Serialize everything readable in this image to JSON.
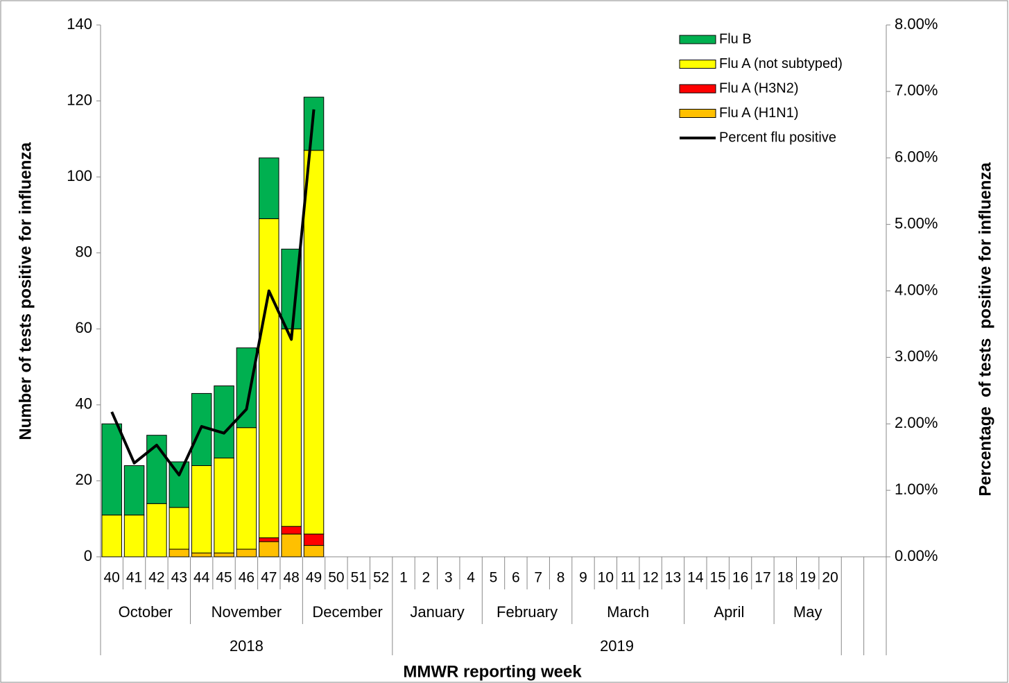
{
  "chart_data": {
    "type": "bar",
    "stacked": true,
    "y_title": "Number of tests positive for influenza",
    "y2_title": "Percentage  of tests  positive for influenza",
    "x_title": "MMWR reporting week",
    "categories": [
      "40",
      "41",
      "42",
      "43",
      "44",
      "45",
      "46",
      "47",
      "48",
      "49",
      "50",
      "51",
      "52",
      "1",
      "2",
      "3",
      "4",
      "5",
      "6",
      "7",
      "8",
      "9",
      "10",
      "11",
      "12",
      "13",
      "14",
      "15",
      "16",
      "17",
      "18",
      "19",
      "20",
      null,
      null
    ],
    "months": [
      "October",
      "October",
      "October",
      "October",
      "November",
      "November",
      "November",
      "November",
      "November",
      "December",
      "December",
      "December",
      "December",
      "January",
      "January",
      "January",
      "January",
      "February",
      "February",
      "February",
      "February",
      "March",
      "March",
      "March",
      "March",
      "March",
      "April",
      "April",
      "April",
      "April",
      "May",
      "May",
      "May",
      null,
      null
    ],
    "years": [
      "2018",
      "2018",
      "2018",
      "2018",
      "2018",
      "2018",
      "2018",
      "2018",
      "2018",
      "2018",
      "2018",
      "2018",
      "2018",
      "2019",
      "2019",
      "2019",
      "2019",
      "2019",
      "2019",
      "2019",
      "2019",
      "2019",
      "2019",
      "2019",
      "2019",
      "2019",
      "2019",
      "2019",
      "2019",
      "2019",
      "2019",
      "2019",
      "2019",
      null,
      null
    ],
    "series": [
      {
        "name": "Flu A (H1N1)",
        "color": "#ffc000",
        "values": [
          0,
          0,
          0,
          2,
          1,
          1,
          2,
          4,
          6,
          3,
          null,
          null,
          null,
          null,
          null,
          null,
          null,
          null,
          null,
          null,
          null,
          null,
          null,
          null,
          null,
          null,
          null,
          null,
          null,
          null,
          null,
          null,
          null,
          null,
          null
        ]
      },
      {
        "name": "Flu A (H3N2)",
        "color": "#ff0000",
        "values": [
          0,
          0,
          0,
          0,
          0,
          0,
          0,
          1,
          2,
          3,
          null,
          null,
          null,
          null,
          null,
          null,
          null,
          null,
          null,
          null,
          null,
          null,
          null,
          null,
          null,
          null,
          null,
          null,
          null,
          null,
          null,
          null,
          null,
          null,
          null
        ]
      },
      {
        "name": "Flu A (not subtyped)",
        "color": "#ffff00",
        "values": [
          11,
          11,
          14,
          11,
          23,
          25,
          32,
          84,
          52,
          101,
          null,
          null,
          null,
          null,
          null,
          null,
          null,
          null,
          null,
          null,
          null,
          null,
          null,
          null,
          null,
          null,
          null,
          null,
          null,
          null,
          null,
          null,
          null,
          null,
          null
        ]
      },
      {
        "name": "Flu B",
        "color": "#00b050",
        "values": [
          24,
          13,
          18,
          12,
          19,
          19,
          21,
          16,
          21,
          14,
          null,
          null,
          null,
          null,
          null,
          null,
          null,
          null,
          null,
          null,
          null,
          null,
          null,
          null,
          null,
          null,
          null,
          null,
          null,
          null,
          null,
          null,
          null,
          null,
          null
        ]
      },
      {
        "name": "Percent flu positive",
        "color": "#000000",
        "type": "line",
        "axis": "y2",
        "values": [
          2.18,
          1.41,
          1.68,
          1.23,
          1.96,
          1.86,
          2.22,
          4.0,
          3.27,
          6.73,
          null,
          null,
          null,
          null,
          null,
          null,
          null,
          null,
          null,
          null,
          null,
          null,
          null,
          null,
          null,
          null,
          null,
          null,
          null,
          null,
          null,
          null,
          null,
          null,
          null
        ]
      }
    ],
    "ylim": [
      0,
      140
    ],
    "yticks": [
      0,
      20,
      40,
      60,
      80,
      100,
      120,
      140
    ],
    "y2lim": [
      0,
      8
    ],
    "y2ticks": [
      {
        "value": 0,
        "label": "0.00%"
      },
      {
        "value": 1,
        "label": "1.00%"
      },
      {
        "value": 2,
        "label": "2.00%"
      },
      {
        "value": 3,
        "label": "3.00%"
      },
      {
        "value": 4,
        "label": "4.00%"
      },
      {
        "value": 5,
        "label": "5.00%"
      },
      {
        "value": 6,
        "label": "6.00%"
      },
      {
        "value": 7,
        "label": "7.00%"
      },
      {
        "value": 8,
        "label": "8.00%"
      }
    ],
    "legend": "top-right",
    "grid": false
  }
}
